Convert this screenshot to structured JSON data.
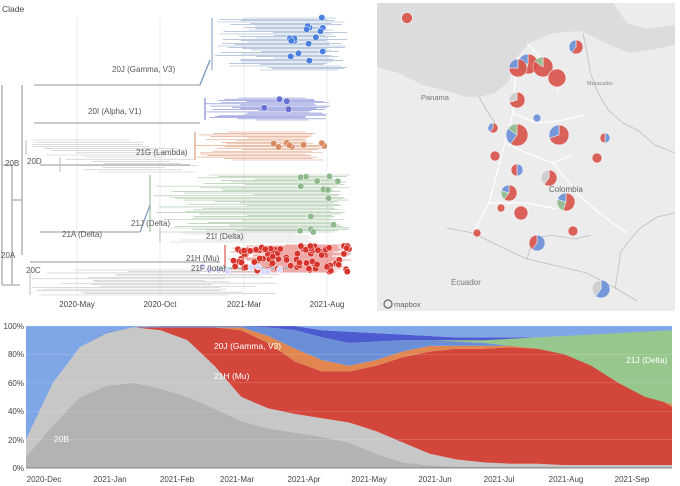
{
  "tree": {
    "header": "Clade",
    "x_ticks": [
      "2020-May",
      "2020-Oct",
      "2021-Mar",
      "2021-Aug"
    ],
    "clade_labels": [
      {
        "name": "20J (Gamma, V3)",
        "color": "#5b6e95"
      },
      {
        "name": "20I (Alpha, V1)",
        "color": "#5a5fc7"
      },
      {
        "name": "20D",
        "color": "#555555"
      },
      {
        "name": "21G (Lambda)",
        "color": "#d0704f"
      },
      {
        "name": "20B",
        "color": "#555555"
      },
      {
        "name": "21J (Delta)",
        "color": "#5c8a5c"
      },
      {
        "name": "21A (Delta)",
        "color": "#555555"
      },
      {
        "name": "21I (Delta)",
        "color": "#555555"
      },
      {
        "name": "21H (Mu)",
        "color": "#c23b2f"
      },
      {
        "name": "21F (Iota)",
        "color": "#555555"
      },
      {
        "name": "20C",
        "color": "#555555"
      },
      {
        "name": "20A",
        "color": "#555555"
      }
    ],
    "colors": {
      "grey": "#b9b9b9",
      "gamma": "#7f9bc2",
      "alpha": "#6670d0",
      "lambda": "#d98a63",
      "delta": "#8fb88c",
      "mu": "#d8342c",
      "iota": "#7ac6c9",
      "tip_blue": "#4a7ee0"
    }
  },
  "map": {
    "labels": [
      "Panama",
      "Colombia",
      "Ecuador",
      "Maracaibo"
    ],
    "logo_text": "mapbox",
    "colors": {
      "land": "#ececec",
      "sea": "#dedede",
      "border": "#bdbdbd",
      "road": "#ffffff"
    }
  },
  "frequencies": {
    "y_ticks": [
      "0%",
      "20%",
      "40%",
      "60%",
      "80%",
      "100%"
    ],
    "x_ticks": [
      "2020-Dec",
      "2021-Jan",
      "2021-Feb",
      "2021-Mar",
      "2021-Apr",
      "2021-May",
      "2021-Jun",
      "2021-Jul",
      "2021-Aug",
      "2021-Sep"
    ],
    "stream_labels": [
      {
        "name": "20J (Gamma, V3)",
        "color": "#ffffff"
      },
      {
        "name": "21H (Mu)",
        "color": "#ffffff"
      },
      {
        "name": "21J (Delta)",
        "color": "#ffffff"
      },
      {
        "name": "20B",
        "color": "#ffffff"
      }
    ],
    "colors": {
      "grey_dark": "#b3b3b3",
      "grey_light": "#c7c7c7",
      "mu": "#d3463b",
      "orange": "#e0864e",
      "gamma": "#6a8fd6",
      "alpha": "#4d5bd1",
      "delta": "#98c78e"
    }
  }
}
